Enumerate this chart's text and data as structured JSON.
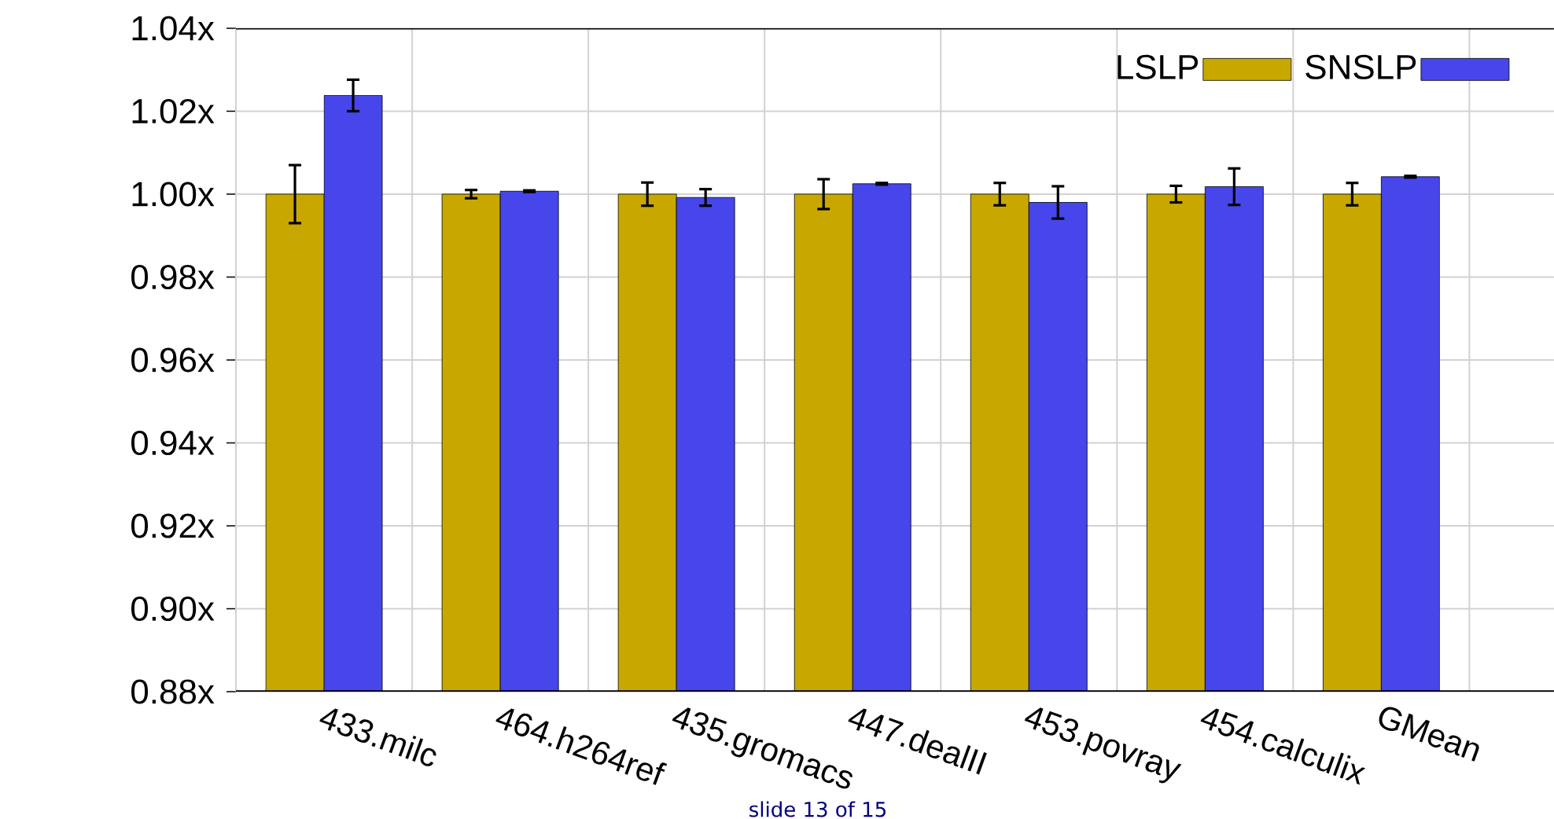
{
  "chart_data": {
    "type": "bar",
    "categories": [
      "433.milc",
      "464.h264ref",
      "435.gromacs",
      "447.dealII",
      "453.povray",
      "454.calculix",
      "GMean"
    ],
    "series": [
      {
        "name": "LSLP",
        "color": "#c8a800",
        "values": [
          1.0,
          1.0,
          1.0,
          1.0,
          1.0,
          1.0,
          1.0
        ],
        "errors": [
          0.007,
          0.001,
          0.0028,
          0.0036,
          0.0027,
          0.002,
          0.0027
        ]
      },
      {
        "name": "SNSLP",
        "color": "#4646ea",
        "values": [
          1.0238,
          1.0007,
          0.9992,
          1.0025,
          0.998,
          1.0018,
          1.0042
        ],
        "errors": [
          0.0038,
          0.0002,
          0.002,
          0.0002,
          0.0039,
          0.0044,
          0.0002
        ]
      }
    ],
    "ylim": [
      0.88,
      1.04
    ],
    "yticks": [
      {
        "value": 0.88,
        "label": "0.88x"
      },
      {
        "value": 0.9,
        "label": "0.90x"
      },
      {
        "value": 0.92,
        "label": "0.92x"
      },
      {
        "value": 0.94,
        "label": "0.94x"
      },
      {
        "value": 0.96,
        "label": "0.96x"
      },
      {
        "value": 0.98,
        "label": "0.98x"
      },
      {
        "value": 1.0,
        "label": "1.00x"
      },
      {
        "value": 1.02,
        "label": "1.02x"
      },
      {
        "value": 1.04,
        "label": "1.04x"
      }
    ],
    "grid": true,
    "legend": "top right",
    "annotations": [
      "slide 13 of 15"
    ]
  }
}
